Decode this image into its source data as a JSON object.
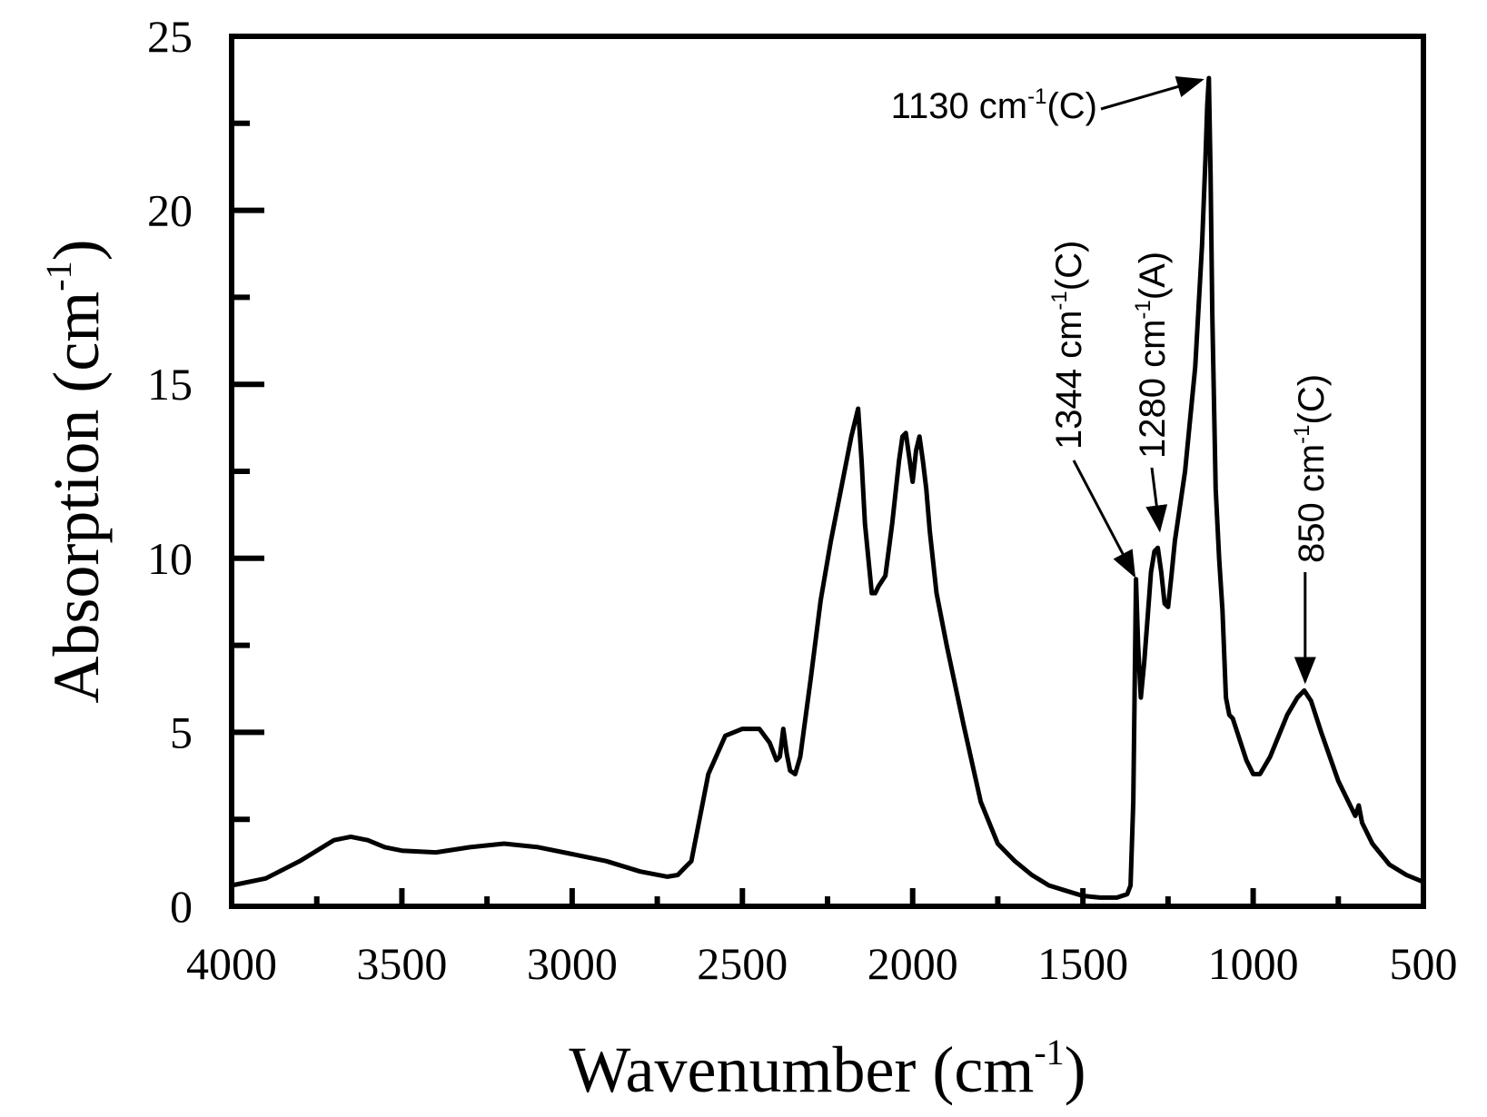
{
  "chart_data": {
    "type": "line",
    "title": "",
    "xlabel": {
      "base": "Wavenumber (cm",
      "sup": "-1",
      "close": ")"
    },
    "ylabel": {
      "base": "Absorption (cm",
      "sup": "-1",
      "close": ")"
    },
    "xlim": [
      4000,
      500
    ],
    "ylim": [
      0,
      25
    ],
    "x_major_ticks": [
      4000,
      3500,
      3000,
      2500,
      2000,
      1500,
      1000,
      500
    ],
    "x_tick_labels": [
      "4000",
      "3500",
      "3000",
      "2500",
      "2000",
      "1500",
      "1000",
      "500"
    ],
    "x_minor_ticks": [
      3750,
      3250,
      2750,
      2250,
      1750,
      1250,
      750
    ],
    "y_major_ticks": [
      0,
      5,
      10,
      15,
      20,
      25
    ],
    "y_tick_labels": [
      "0",
      "5",
      "10",
      "15",
      "20",
      "25"
    ],
    "y_minor_ticks": [
      2.5,
      7.5,
      12.5,
      17.5,
      22.5
    ],
    "grid": false,
    "series": [
      {
        "name": "Absorption",
        "x": [
          4000,
          3900,
          3800,
          3700,
          3650,
          3600,
          3550,
          3500,
          3400,
          3300,
          3200,
          3100,
          3000,
          2900,
          2800,
          2720,
          2690,
          2670,
          2650,
          2600,
          2550,
          2500,
          2450,
          2420,
          2400,
          2390,
          2380,
          2370,
          2360,
          2345,
          2330,
          2300,
          2270,
          2240,
          2200,
          2180,
          2160,
          2150,
          2140,
          2120,
          2110,
          2100,
          2080,
          2060,
          2040,
          2030,
          2020,
          2010,
          2000,
          1990,
          1980,
          1970,
          1960,
          1950,
          1930,
          1900,
          1850,
          1800,
          1750,
          1700,
          1650,
          1600,
          1550,
          1500,
          1450,
          1400,
          1370,
          1360,
          1352,
          1344,
          1338,
          1330,
          1320,
          1310,
          1300,
          1290,
          1280,
          1270,
          1260,
          1250,
          1240,
          1230,
          1200,
          1170,
          1150,
          1140,
          1135,
          1130,
          1125,
          1120,
          1110,
          1100,
          1090,
          1080,
          1070,
          1060,
          1040,
          1020,
          1000,
          980,
          950,
          900,
          870,
          850,
          830,
          800,
          750,
          700,
          690,
          680,
          650,
          600,
          550,
          500
        ],
        "y": [
          0.6,
          0.8,
          1.3,
          1.9,
          2.0,
          1.9,
          1.7,
          1.6,
          1.55,
          1.7,
          1.8,
          1.7,
          1.5,
          1.3,
          1.0,
          0.85,
          0.9,
          1.1,
          1.3,
          3.8,
          4.9,
          5.1,
          5.1,
          4.7,
          4.2,
          4.3,
          5.1,
          4.4,
          3.9,
          3.8,
          4.3,
          6.5,
          8.8,
          10.5,
          12.5,
          13.5,
          14.3,
          12.8,
          11.0,
          9.0,
          9.0,
          9.2,
          9.5,
          11.0,
          12.8,
          13.5,
          13.6,
          12.9,
          12.2,
          13.1,
          13.5,
          12.8,
          12.0,
          10.8,
          9.0,
          7.5,
          5.2,
          3.0,
          1.8,
          1.3,
          0.9,
          0.6,
          0.45,
          0.3,
          0.25,
          0.25,
          0.35,
          0.6,
          3.0,
          9.4,
          7.5,
          6.0,
          7.0,
          8.3,
          9.6,
          10.2,
          10.3,
          9.6,
          8.7,
          8.6,
          9.5,
          10.5,
          12.5,
          15.5,
          19.0,
          21.5,
          23.0,
          23.8,
          21.0,
          17.0,
          12.0,
          10.0,
          8.5,
          6.0,
          5.5,
          5.4,
          4.8,
          4.2,
          3.8,
          3.8,
          4.3,
          5.5,
          6.0,
          6.2,
          5.9,
          5.0,
          3.6,
          2.6,
          2.9,
          2.4,
          1.8,
          1.2,
          0.9,
          0.7
        ]
      }
    ],
    "annotations": [
      {
        "base": "1130 cm",
        "sup": "-1",
        "tail": "(C)",
        "x": 1130,
        "y": 23.8,
        "orientation": "horizontal"
      },
      {
        "base": "1344 cm",
        "sup": "-1",
        "tail": "(C)",
        "x": 1344,
        "y": 9.4,
        "orientation": "vertical"
      },
      {
        "base": "1280 cm",
        "sup": "-1",
        "tail": "(A)",
        "x": 1280,
        "y": 10.4,
        "orientation": "vertical"
      },
      {
        "base": "850 cm",
        "sup": "-1",
        "tail": "(C)",
        "x": 850,
        "y": 6.2,
        "orientation": "vertical"
      }
    ]
  }
}
